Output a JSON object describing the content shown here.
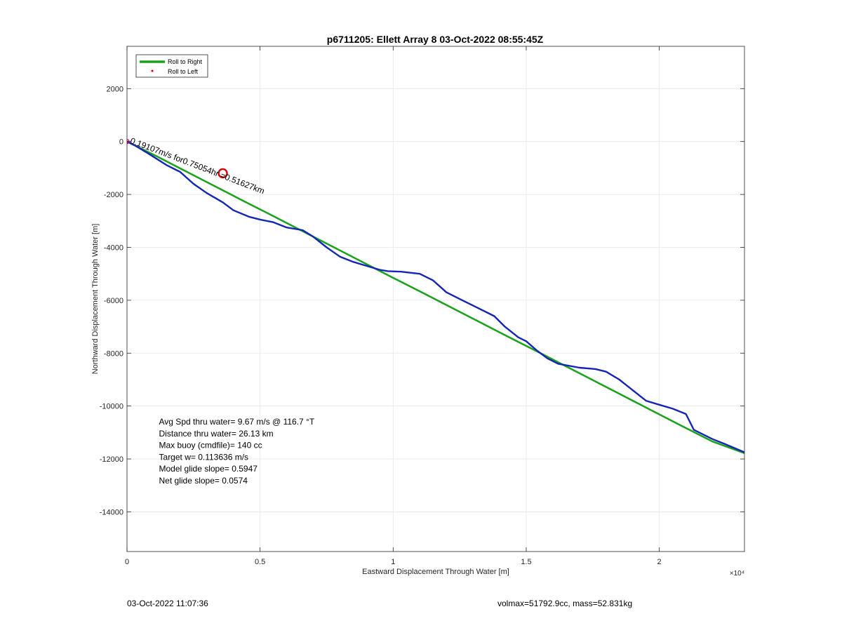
{
  "footer": {
    "timestamp": "03-Oct-2022 11:07:36",
    "vol_mass": "volmax=51792.9cc, mass=52.831kg"
  },
  "colors": {
    "roll_right": "#1aa21a",
    "roll_left": "#d40000",
    "track": "#1426b4",
    "marker": "#d40000",
    "grid": "#e6e6e6",
    "axes": "#262626"
  },
  "chart_data": {
    "type": "line",
    "title": "p6711205: Ellett Array 8 03-Oct-2022 08:55:45Z",
    "xlabel": "Eastward Displacement Through Water [m]",
    "ylabel": "Northward Displacement Through Water [m]",
    "x_exponent_label": "×10⁴",
    "xlim": [
      0,
      23200
    ],
    "ylim": [
      -15500,
      3600
    ],
    "xticks": [
      0,
      5000,
      10000,
      15000,
      20000
    ],
    "xtick_labels": [
      "0",
      "0.5",
      "1",
      "1.5",
      "2"
    ],
    "yticks": [
      2000,
      0,
      -2000,
      -4000,
      -6000,
      -8000,
      -10000,
      -12000,
      -14000
    ],
    "ytick_labels": [
      "2000",
      "0",
      "-2000",
      "-4000",
      "-6000",
      "-8000",
      "-10000",
      "-12000",
      "-14000"
    ],
    "grid": true,
    "legend": {
      "location": "top-left",
      "entries": [
        "Roll to Right",
        "Roll to Left"
      ]
    },
    "series": [
      {
        "name": "Roll to Right",
        "style": "straight",
        "x": [
          0,
          1100,
          2200,
          3300,
          4400,
          5500,
          6600,
          7700,
          8800,
          9900,
          11000,
          12100,
          13200,
          14300,
          15400,
          16500,
          17600,
          18700,
          19800,
          20900,
          22000,
          23200
        ],
        "y": [
          0,
          -550,
          -1120,
          -1690,
          -2260,
          -2820,
          -3390,
          -3960,
          -4530,
          -5100,
          -5660,
          -6230,
          -6800,
          -7370,
          -7930,
          -8500,
          -9070,
          -9640,
          -10210,
          -10780,
          -11340,
          -11780
        ]
      },
      {
        "name": "Roll to Left",
        "style": "points",
        "x": [
          0,
          10,
          25
        ],
        "y": [
          0,
          -10,
          -20
        ]
      },
      {
        "name": "Track",
        "style": "track",
        "x": [
          0,
          300,
          800,
          1500,
          2000,
          2500,
          3000,
          3600,
          4000,
          4600,
          5000,
          5500,
          6000,
          6600,
          7000,
          7500,
          8000,
          8500,
          9000,
          9500,
          9800,
          10300,
          11000,
          11500,
          12000,
          12600,
          13200,
          13800,
          14200,
          14700,
          15000,
          15400,
          15800,
          16200,
          17000,
          17600,
          18000,
          18500,
          19000,
          19500,
          20000,
          20500,
          21000,
          21300,
          22000,
          22500,
          23200
        ],
        "y": [
          0,
          -150,
          -450,
          -900,
          -1150,
          -1600,
          -1950,
          -2300,
          -2600,
          -2850,
          -2950,
          -3050,
          -3250,
          -3350,
          -3600,
          -4000,
          -4350,
          -4550,
          -4700,
          -4850,
          -4900,
          -4920,
          -5000,
          -5250,
          -5700,
          -6000,
          -6300,
          -6600,
          -7000,
          -7400,
          -7550,
          -7900,
          -8200,
          -8400,
          -8550,
          -8600,
          -8700,
          -9000,
          -9400,
          -9800,
          -9950,
          -10100,
          -10300,
          -10900,
          -11250,
          -11450,
          -11750
        ]
      }
    ],
    "marker_point": {
      "x": 3600,
      "y": -1200
    },
    "segment_annotation": {
      "text": "0.19107m/s for0.75054hr =0.51627km",
      "x": 100,
      "y": -50,
      "angle_deg": 21
    },
    "stats_annotation": {
      "x": 1200,
      "y": -11600,
      "lines": [
        "Avg Spd thru water=  9.67 m/s @ 116.7 °T",
        "Distance thru water= 26.13 km",
        "Max buoy (cmdfile)= 140 cc",
        "Target w= 0.113636 m/s",
        "Model glide slope= 0.5947",
        "Net glide slope= 0.0574"
      ]
    }
  }
}
